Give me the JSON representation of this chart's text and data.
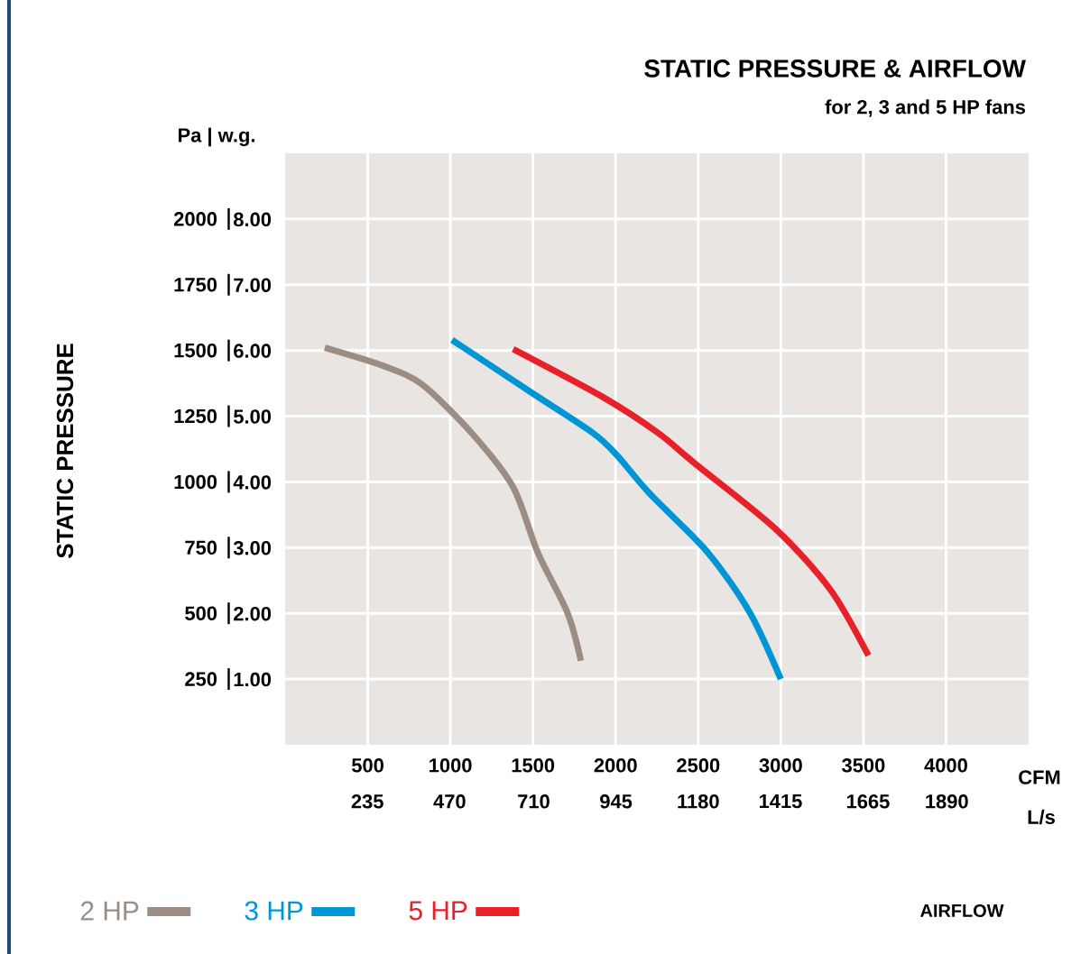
{
  "chart_data": {
    "type": "line",
    "title": "STATIC PRESSURE & AIRFLOW",
    "subtitle": "for 2, 3 and 5 HP fans",
    "ylabel": "STATIC PRESSURE",
    "annotations": [
      "Pa | w.g.",
      "CFM",
      "L/s",
      "AIRFLOW"
    ],
    "xlim": [
      0,
      4500
    ],
    "xticks": [
      500,
      1000,
      1500,
      2000,
      2500,
      3000,
      3500,
      4000
    ],
    "x2lim": [
      0,
      2124
    ],
    "x2ticks": [
      235,
      470,
      710,
      945,
      1180,
      1415,
      1665,
      1890
    ],
    "ylim": [
      0,
      2250
    ],
    "yticks": [
      250,
      500,
      750,
      1000,
      1250,
      1500,
      1750,
      2000
    ],
    "y2lim": [
      0,
      9
    ],
    "y2ticks": [
      {
        "value": 1,
        "label": "1.00"
      },
      {
        "value": 2,
        "label": "2.00"
      },
      {
        "value": 3,
        "label": "3.00"
      },
      {
        "value": 4,
        "label": "4.00"
      },
      {
        "value": 5,
        "label": "5.00"
      },
      {
        "value": 6,
        "label": "6.00"
      },
      {
        "value": 7,
        "label": "7.00"
      },
      {
        "value": 8,
        "label": "8.00"
      }
    ],
    "grid": true,
    "legend": "bottom",
    "series": [
      {
        "name": "2 HP",
        "color": "#9c8c82",
        "x": [
          240,
          600,
          830,
          1130,
          1380,
          1530,
          1710,
          1790
        ],
        "values": [
          1510,
          1440,
          1370,
          1185,
          980,
          730,
          500,
          320
        ]
      },
      {
        "name": "3 HP",
        "color": "#0096d6",
        "x": [
          1010,
          1490,
          1865,
          2010,
          2200,
          2560,
          2815,
          3000
        ],
        "values": [
          1540,
          1340,
          1185,
          1100,
          960,
          730,
          500,
          250
        ]
      },
      {
        "name": "5 HP",
        "color": "#e8202a",
        "x": [
          1380,
          1930,
          2260,
          2480,
          2970,
          3300,
          3530
        ],
        "values": [
          1505,
          1320,
          1185,
          1070,
          820,
          590,
          340
        ]
      }
    ]
  }
}
